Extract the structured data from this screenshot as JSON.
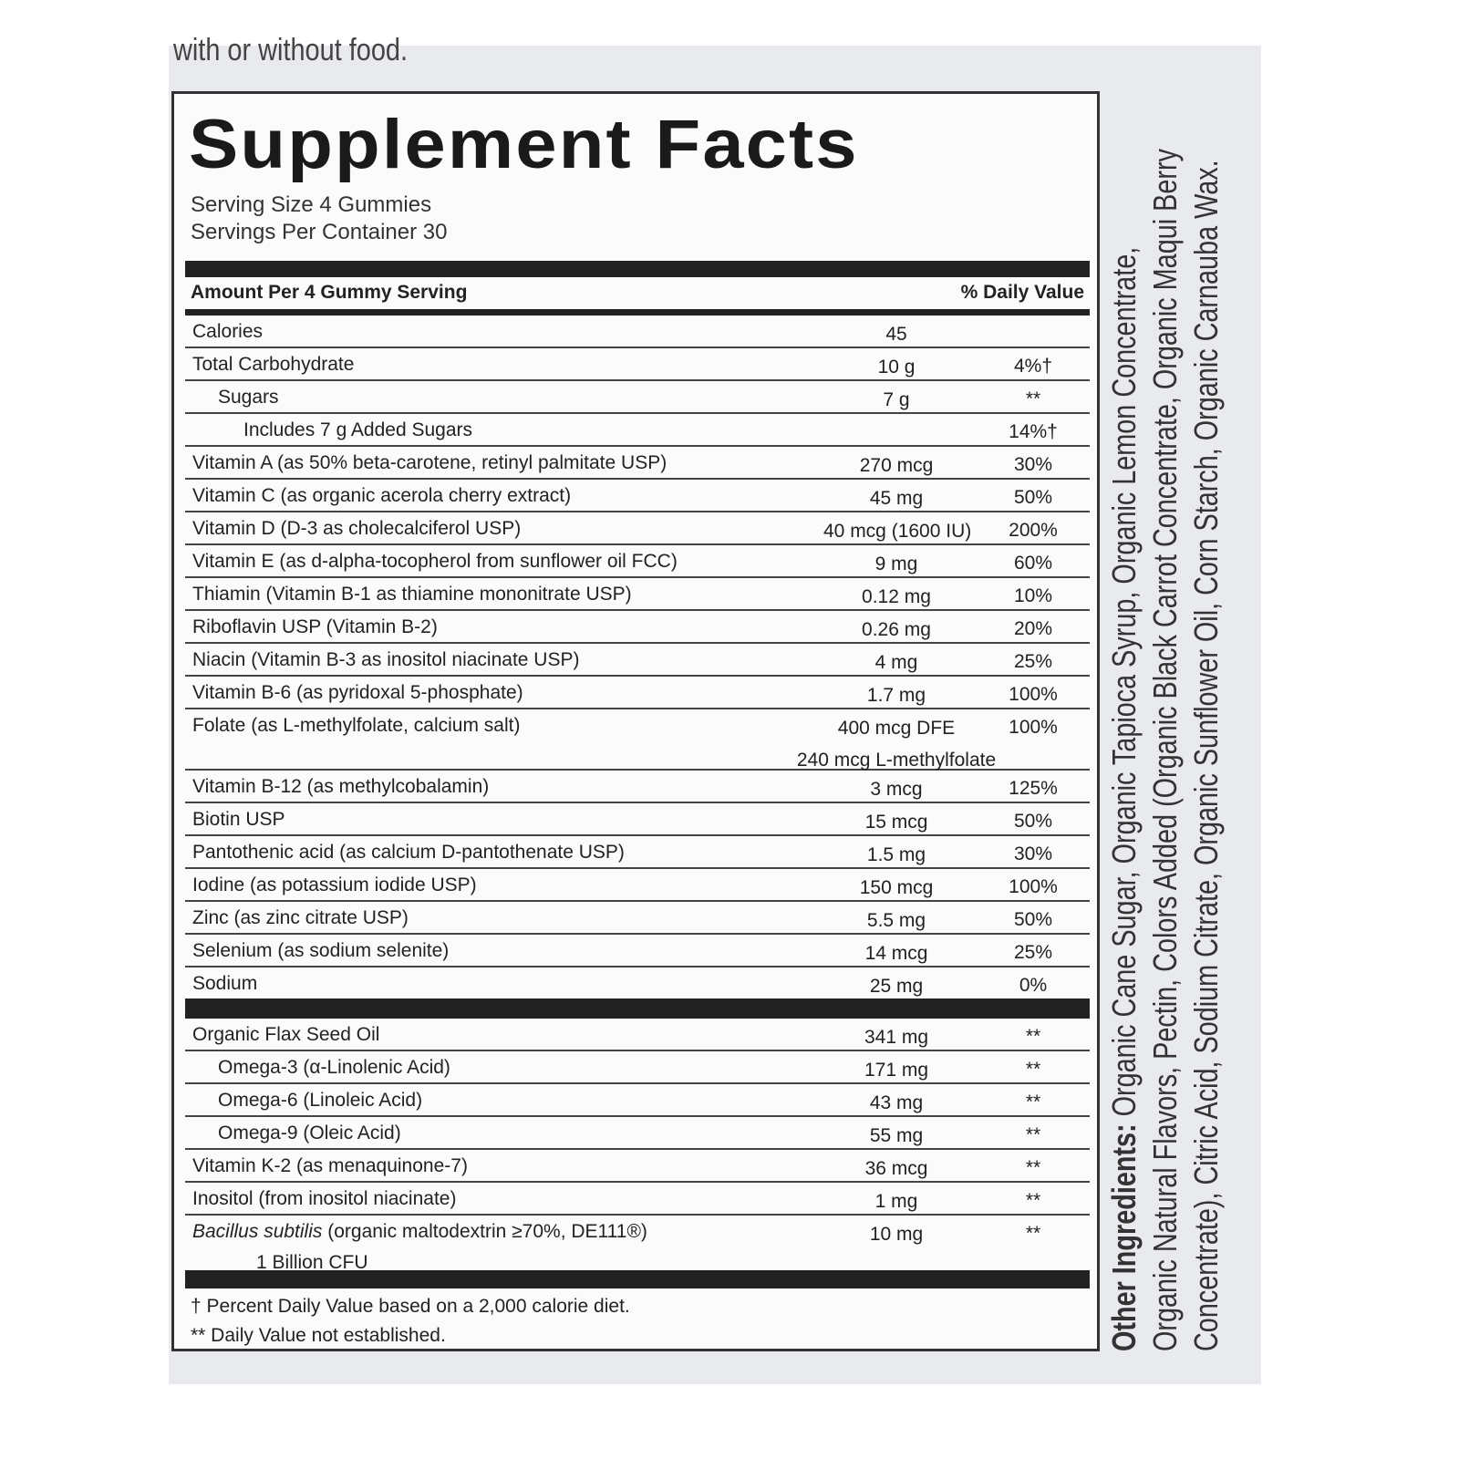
{
  "top_text": "with or without food.",
  "title": "Supplement Facts",
  "serving_size": "Serving Size 4 Gummies",
  "servings_per_container": "Servings Per Container 30",
  "header": {
    "amount": "Amount Per 4 Gummy Serving",
    "dv": "% Daily Value"
  },
  "rows": [
    {
      "name": "Calories",
      "amount": "45",
      "dv": ""
    },
    {
      "name": "Total Carbohydrate",
      "amount": "10 g",
      "dv": "4%†"
    },
    {
      "name": "Sugars",
      "amount": "7 g",
      "dv": "**",
      "indent": 1
    },
    {
      "name": "Includes 7 g Added Sugars",
      "amount": "",
      "dv": "14%†",
      "indent": 2
    },
    {
      "name": "Vitamin A (as 50% beta-carotene, retinyl palmitate USP)",
      "amount": "270 mcg",
      "dv": "30%"
    },
    {
      "name": "Vitamin C (as organic acerola cherry extract)",
      "amount": "45 mg",
      "dv": "50%"
    },
    {
      "name": "Vitamin D (D-3 as cholecalciferol USP)",
      "amount": "40 mcg (1600 IU)",
      "dv": "200%"
    },
    {
      "name": "Vitamin E (as d-alpha-tocopherol from sunflower oil FCC)",
      "amount": "9 mg",
      "dv": "60%"
    },
    {
      "name": "Thiamin (Vitamin B-1 as thiamine mononitrate USP)",
      "amount": "0.12 mg",
      "dv": "10%"
    },
    {
      "name": "Riboflavin USP (Vitamin B-2)",
      "amount": "0.26 mg",
      "dv": "20%"
    },
    {
      "name": "Niacin (Vitamin B-3 as inositol niacinate USP)",
      "amount": "4 mg",
      "dv": "25%"
    },
    {
      "name": "Vitamin B-6 (as pyridoxal 5-phosphate)",
      "amount": "1.7 mg",
      "dv": "100%"
    },
    {
      "name": "Folate (as L-methylfolate, calcium salt)",
      "amount": "400 mcg DFE",
      "amount2": "240 mcg L-methylfolate",
      "dv": "100%"
    },
    {
      "name": "Vitamin B-12 (as methylcobalamin)",
      "amount": "3 mcg",
      "dv": "125%"
    },
    {
      "name": "Biotin USP",
      "amount": "15 mcg",
      "dv": "50%"
    },
    {
      "name": "Pantothenic acid (as calcium D-pantothenate USP)",
      "amount": "1.5 mg",
      "dv": "30%"
    },
    {
      "name": "Iodine (as potassium iodide USP)",
      "amount": "150 mcg",
      "dv": "100%"
    },
    {
      "name": "Zinc (as zinc citrate USP)",
      "amount": "5.5 mg",
      "dv": "50%"
    },
    {
      "name": "Selenium (as sodium selenite)",
      "amount": "14 mcg",
      "dv": "25%"
    },
    {
      "name": "Sodium",
      "amount": "25 mg",
      "dv": "0%"
    }
  ],
  "rows2": [
    {
      "name": "Organic Flax Seed Oil",
      "amount": "341 mg",
      "dv": "**"
    },
    {
      "name": "Omega-3 (α-Linolenic Acid)",
      "amount": "171 mg",
      "dv": "**",
      "indent": 1
    },
    {
      "name": "Omega-6 (Linoleic Acid)",
      "amount": "43 mg",
      "dv": "**",
      "indent": 1
    },
    {
      "name": "Omega-9 (Oleic Acid)",
      "amount": "55 mg",
      "dv": "**",
      "indent": 1
    },
    {
      "name": "Vitamin K-2 (as menaquinone-7)",
      "amount": "36 mcg",
      "dv": "**"
    },
    {
      "name": "Inositol (from inositol niacinate)",
      "amount": "1 mg",
      "dv": "**"
    },
    {
      "name_italic": "Bacillus subtilis",
      "name": " (organic maltodextrin ≥70%, DE111®)",
      "name2": "1 Billion CFU",
      "amount": "10 mg",
      "dv": "**"
    }
  ],
  "footnotes": [
    "† Percent Daily Value based on a 2,000 calorie diet.",
    "** Daily Value not established."
  ],
  "ingredients": {
    "label": "Other Ingredients:",
    "lines": [
      " Organic Cane Sugar, Organic Tapioca Syrup, Organic Lemon Concentrate,",
      "Organic Natural Flavors, Pectin, Colors Added (Organic Black Carrot Concentrate, Organic Maqui Berry",
      "Concentrate), Citric Acid, Sodium Citrate, Organic Sunflower Oil, Corn Starch, Organic Carnauba Wax."
    ]
  }
}
